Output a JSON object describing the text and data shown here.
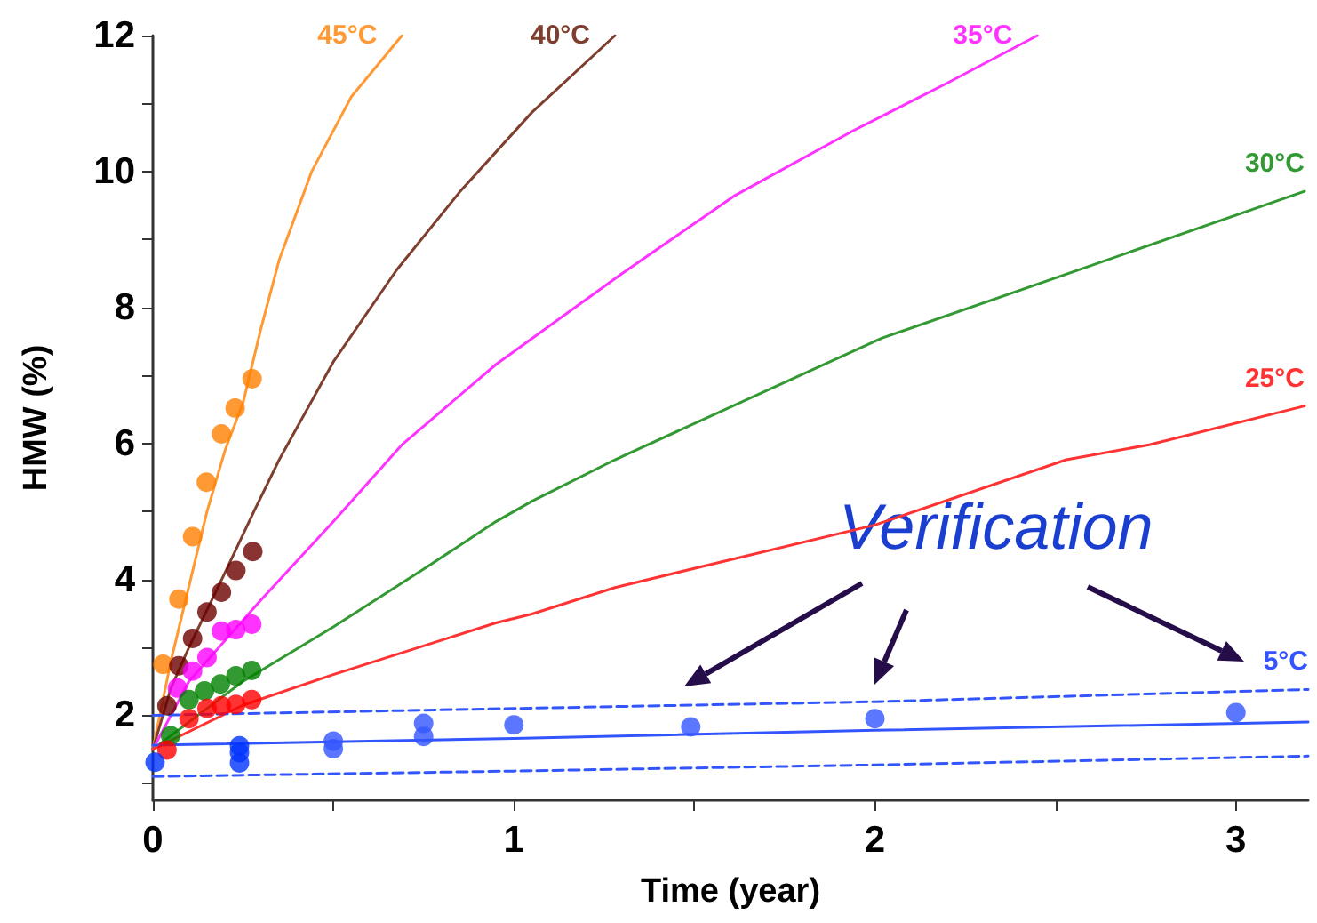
{
  "chart_data": {
    "type": "line",
    "xlabel": "Time (year)",
    "ylabel": "HMW (%)",
    "annotations": [
      "Verification"
    ],
    "xlim": [
      0,
      3.2
    ],
    "xticks": [
      0,
      {
        "value": 0.5,
        "label": null
      },
      1,
      {
        "value": 1.5,
        "label": null
      },
      2,
      {
        "value": 2.5,
        "label": null
      },
      3
    ],
    "ylim": [
      0.75,
      12
    ],
    "yticks": [
      {
        "value": 1,
        "label": null
      },
      2,
      {
        "value": 3,
        "label": null
      },
      4,
      {
        "value": 5,
        "label": null
      },
      6,
      {
        "value": 7,
        "label": null
      },
      8,
      {
        "value": 9,
        "label": null
      },
      10,
      {
        "value": 11,
        "label": null
      },
      12
    ],
    "grid": false,
    "legend": false,
    "line_style": "solid",
    "series": [
      {
        "name": "45°C",
        "color": "#ff9933",
        "x": [
          0,
          0.05,
          0.1,
          0.15,
          0.2,
          0.25,
          0.3,
          0.35,
          0.44,
          0.55,
          0.69
        ],
        "values": [
          1.5,
          2.8,
          3.9,
          5.0,
          5.9,
          6.6,
          7.7,
          8.7,
          10,
          11.1,
          12
        ]
      },
      {
        "name": "40°C",
        "color": "#7f3f2f",
        "x": [
          0,
          0.05,
          0.1,
          0.2,
          0.28,
          0.35,
          0.5,
          0.675,
          0.85,
          1.05,
          1.28
        ],
        "values": [
          1.5,
          2.4,
          3.0,
          4.1,
          5.0,
          5.76,
          7.2,
          8.55,
          9.7,
          10.87,
          12
        ]
      },
      {
        "name": "35°C",
        "color": "#ff33ff",
        "x": [
          0,
          0.1,
          0.2,
          0.3,
          0.5,
          0.69,
          0.95,
          1.3,
          1.61,
          1.94,
          2.2,
          2.45
        ],
        "values": [
          1.5,
          2.5,
          3.1,
          3.7,
          4.85,
          5.98,
          7.16,
          8.5,
          9.64,
          10.6,
          11.3,
          12
        ]
      },
      {
        "name": "30°C",
        "color": "#339933",
        "x": [
          0,
          0.25,
          0.5,
          0.75,
          0.95,
          1.05,
          1.28,
          2.02,
          2.59,
          3.19
        ],
        "values": [
          1.5,
          2.5,
          3.3,
          4.15,
          4.85,
          5.15,
          5.76,
          7.55,
          8.6,
          9.71
        ]
      },
      {
        "name": "25°C",
        "color": "#ff3333",
        "x": [
          0,
          0.25,
          0.5,
          0.95,
          1.05,
          1.28,
          2.0,
          2.53,
          2.76,
          3.19
        ],
        "values": [
          1.5,
          2.15,
          2.6,
          3.36,
          3.49,
          3.88,
          4.8,
          5.76,
          5.98,
          6.55
        ]
      },
      {
        "name": "5°C",
        "color": "#3355ff",
        "x": [
          0,
          1,
          2,
          3.2
        ],
        "values": [
          1.56,
          1.66,
          1.78,
          1.9
        ]
      },
      {
        "color": "#3355ff",
        "line_style": "dashed",
        "x": [
          0,
          1,
          2,
          3.2
        ],
        "values": [
          2.0,
          2.1,
          2.2,
          2.38
        ]
      },
      {
        "color": "#3355ff",
        "line_style": "dashed",
        "x": [
          0,
          1,
          2,
          3.2
        ],
        "values": [
          1.1,
          1.18,
          1.27,
          1.4
        ]
      },
      {
        "color": "#ff8000",
        "type": "scatter",
        "marker": "circle",
        "x": [
          0.028,
          0.072,
          0.11,
          0.148,
          0.19,
          0.228,
          0.275
        ],
        "values": [
          2.75,
          3.71,
          4.63,
          5.43,
          6.14,
          6.52,
          6.95
        ]
      },
      {
        "color": "#6b0000",
        "type": "scatter",
        "marker": "circle",
        "x": [
          0.039,
          0.072,
          0.11,
          0.15,
          0.19,
          0.23,
          0.277
        ],
        "values": [
          2.14,
          2.73,
          3.13,
          3.52,
          3.81,
          4.13,
          4.41
        ]
      },
      {
        "color": "#ff00ff",
        "type": "scatter",
        "marker": "circle",
        "x": [
          0.068,
          0.11,
          0.15,
          0.19,
          0.23,
          0.274
        ],
        "values": [
          2.4,
          2.65,
          2.85,
          3.24,
          3.26,
          3.34
        ]
      },
      {
        "color": "#008000",
        "type": "scatter",
        "marker": "circle",
        "x": [
          0.049,
          0.1,
          0.143,
          0.187,
          0.23,
          0.274
        ],
        "values": [
          1.7,
          2.23,
          2.36,
          2.46,
          2.58,
          2.66
        ]
      },
      {
        "color": "#ff0000",
        "type": "scatter",
        "marker": "circle",
        "x": [
          0.039,
          0.1,
          0.15,
          0.19,
          0.23,
          0.274
        ],
        "values": [
          1.49,
          1.95,
          2.1,
          2.14,
          2.16,
          2.23
        ]
      },
      {
        "color": "#0033ff",
        "type": "scatter",
        "marker": "circle",
        "x": [
          0.006,
          0.24,
          0.24,
          0.24
        ],
        "values": [
          1.31,
          1.55,
          1.45,
          1.3
        ]
      },
      {
        "color": "#3355ff",
        "type": "scatter",
        "marker": "circle",
        "x": [
          0.5,
          0.5,
          0.75,
          0.75,
          1.0,
          1.49,
          2.0,
          3.0
        ],
        "values": [
          1.62,
          1.51,
          1.88,
          1.69,
          1.86,
          1.83,
          1.95,
          2.04
        ]
      }
    ]
  }
}
